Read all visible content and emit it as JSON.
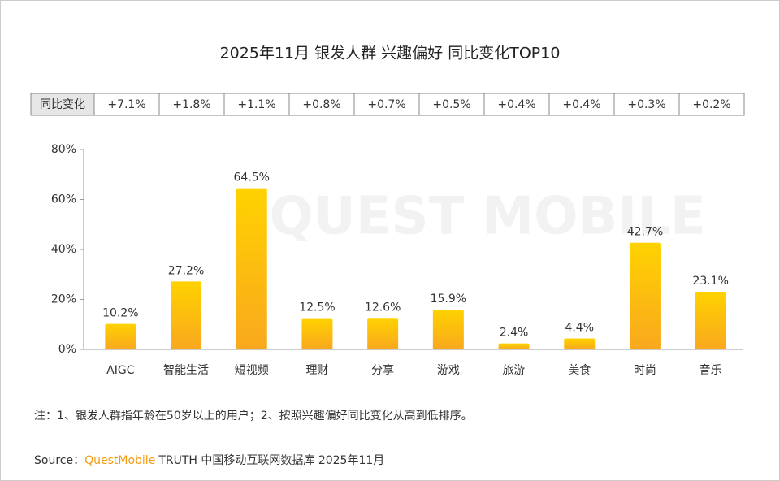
{
  "chart_data": {
    "type": "bar",
    "title": "2025年11月 银发人群 兴趣偏好 同比变化TOP10",
    "watermark": "QUEST MOBILE",
    "yoy_header": "同比变化",
    "yoy_values": [
      "+7.1%",
      "+1.8%",
      "+1.1%",
      "+0.8%",
      "+0.7%",
      "+0.5%",
      "+0.4%",
      "+0.4%",
      "+0.3%",
      "+0.2%"
    ],
    "categories": [
      "AIGC",
      "智能生活",
      "短视频",
      "理财",
      "分享",
      "游戏",
      "旅游",
      "美食",
      "时尚",
      "音乐"
    ],
    "values": [
      10.2,
      27.2,
      64.5,
      12.5,
      12.6,
      15.9,
      2.4,
      4.4,
      42.7,
      23.1
    ],
    "value_labels": [
      "10.2%",
      "27.2%",
      "64.5%",
      "12.5%",
      "12.6%",
      "15.9%",
      "2.4%",
      "4.4%",
      "42.7%",
      "23.1%"
    ],
    "color": "#fcc30a",
    "ylim": [
      0,
      80
    ],
    "yticks": [
      {
        "value": 0,
        "label": "0%"
      },
      {
        "value": 20,
        "label": "20%"
      },
      {
        "value": 40,
        "label": "40%"
      },
      {
        "value": 60,
        "label": "60%"
      },
      {
        "value": 80,
        "label": "80%"
      }
    ],
    "note": "注：1、银发人群指年龄在50岁以上的用户；2、按照兴趣偏好同比变化从高到低排序。",
    "source_prefix": "Source：",
    "source_brand": "QuestMobile",
    "source_rest": "TRUTH 中国移动互联网数据库 2025年11月"
  }
}
